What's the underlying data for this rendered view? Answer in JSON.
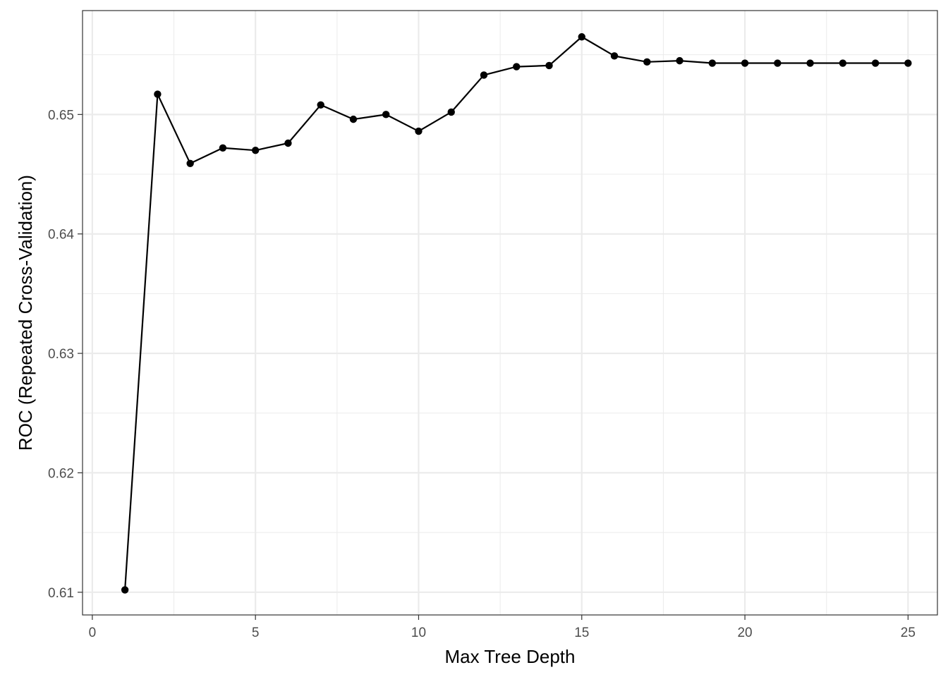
{
  "chart_data": {
    "type": "line",
    "title": "",
    "xlabel": "Max Tree Depth",
    "ylabel": "ROC (Repeated Cross-Validation)",
    "xlim": [
      -0.3,
      25.9
    ],
    "ylim": [
      0.6081,
      0.6587
    ],
    "x_ticks": [
      0,
      5,
      10,
      15,
      20,
      25
    ],
    "x_tick_labels": [
      "0",
      "5",
      "10",
      "15",
      "20",
      "25"
    ],
    "y_ticks": [
      0.61,
      0.62,
      0.63,
      0.64,
      0.65
    ],
    "y_tick_labels": [
      "0.61",
      "0.62",
      "0.63",
      "0.64",
      "0.65"
    ],
    "x_minor_ticks": [
      2.5,
      7.5,
      12.5,
      17.5,
      22.5
    ],
    "y_minor_ticks": [
      0.615,
      0.625,
      0.635,
      0.645,
      0.655
    ],
    "grid": true,
    "series": [
      {
        "x": [
          1,
          2,
          3,
          4,
          5,
          6,
          7,
          8,
          9,
          10,
          11,
          12,
          13,
          14,
          15,
          16,
          17,
          18,
          19,
          20,
          21,
          22,
          23,
          24,
          25
        ],
        "values": [
          0.6102,
          0.6517,
          0.6459,
          0.6472,
          0.647,
          0.6476,
          0.6508,
          0.6496,
          0.65,
          0.6486,
          0.6502,
          0.6533,
          0.654,
          0.6541,
          0.6565,
          0.6549,
          0.6544,
          0.6545,
          0.6543,
          0.6543,
          0.6543,
          0.6543,
          0.6543,
          0.6543,
          0.6543
        ]
      }
    ],
    "colors": {
      "line": "#000000",
      "grid": "#ebebeb",
      "panel_border": "#333333",
      "tick_text": "#4d4d4d"
    }
  }
}
